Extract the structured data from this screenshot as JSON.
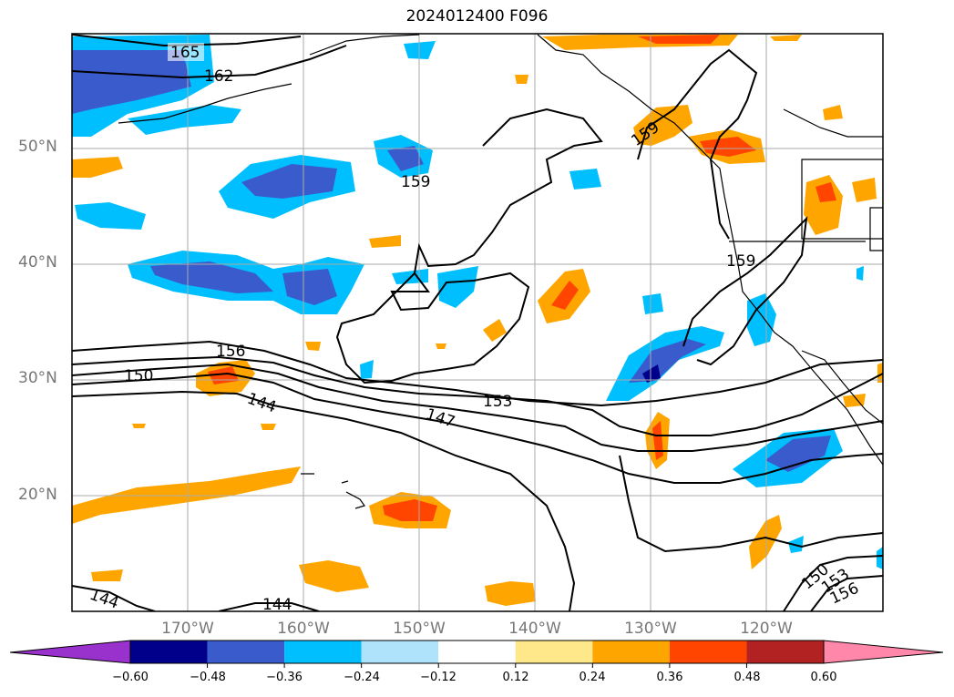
{
  "title": "2024012400 F096",
  "latitude_labels": [
    "50°N",
    "40°N",
    "30°N",
    "20°N"
  ],
  "longitude_labels": [
    "170°W",
    "160°W",
    "150°W",
    "140°W",
    "130°W",
    "120°W"
  ],
  "contour_labels": [
    "165",
    "162",
    "159",
    "159",
    "159",
    "156",
    "150",
    "144",
    "153",
    "147",
    "150",
    "153",
    "156",
    "144",
    "144"
  ],
  "colorbar": {
    "ticks": [
      "−0.60",
      "−0.48",
      "−0.36",
      "−0.24",
      "−0.12",
      "0.12",
      "0.24",
      "0.36",
      "0.48",
      "0.60"
    ],
    "colors": [
      "#9932cc",
      "#00008b",
      "#3a5bcc",
      "#00bfff",
      "#aee3fb",
      "#ffffff",
      "#ffe88a",
      "#ffa500",
      "#ff4500",
      "#b22222",
      "#ff88aa"
    ]
  }
}
